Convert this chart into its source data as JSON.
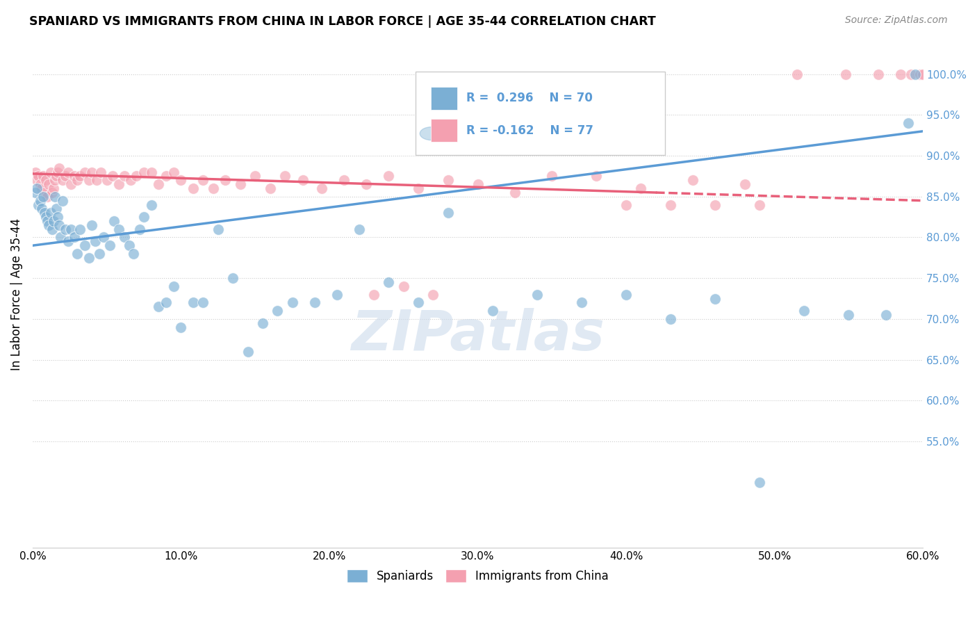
{
  "title": "SPANIARD VS IMMIGRANTS FROM CHINA IN LABOR FORCE | AGE 35-44 CORRELATION CHART",
  "source": "Source: ZipAtlas.com",
  "ylabel": "In Labor Force | Age 35-44",
  "xmin": 0.0,
  "xmax": 0.6,
  "ymin": 0.42,
  "ymax": 1.04,
  "yticks": [
    0.55,
    0.6,
    0.65,
    0.7,
    0.75,
    0.8,
    0.85,
    0.9,
    0.95,
    1.0
  ],
  "ytick_labels": [
    "55.0%",
    "60.0%",
    "65.0%",
    "70.0%",
    "75.0%",
    "80.0%",
    "85.0%",
    "90.0%",
    "95.0%",
    "100.0%"
  ],
  "xticks": [
    0.0,
    0.1,
    0.2,
    0.3,
    0.4,
    0.5,
    0.6
  ],
  "xtick_labels": [
    "0.0%",
    "10.0%",
    "20.0%",
    "30.0%",
    "40.0%",
    "50.0%",
    "60.0%"
  ],
  "color_spaniard": "#7BAFD4",
  "color_china": "#F4A0B0",
  "color_line_spaniard": "#5B9BD5",
  "color_line_china": "#E8607A",
  "color_axis_right": "#5B9BD5",
  "watermark": "ZIPatlas",
  "spaniard_x": [
    0.002,
    0.003,
    0.004,
    0.005,
    0.006,
    0.007,
    0.008,
    0.009,
    0.01,
    0.011,
    0.012,
    0.013,
    0.014,
    0.015,
    0.016,
    0.017,
    0.018,
    0.019,
    0.02,
    0.022,
    0.024,
    0.026,
    0.028,
    0.03,
    0.032,
    0.035,
    0.038,
    0.04,
    0.042,
    0.045,
    0.048,
    0.052,
    0.055,
    0.058,
    0.062,
    0.065,
    0.068,
    0.072,
    0.075,
    0.08,
    0.085,
    0.09,
    0.095,
    0.1,
    0.108,
    0.115,
    0.125,
    0.135,
    0.145,
    0.155,
    0.165,
    0.175,
    0.19,
    0.205,
    0.22,
    0.24,
    0.26,
    0.28,
    0.31,
    0.34,
    0.37,
    0.4,
    0.43,
    0.46,
    0.49,
    0.52,
    0.55,
    0.575,
    0.59,
    0.595
  ],
  "spaniard_y": [
    0.855,
    0.86,
    0.84,
    0.845,
    0.835,
    0.85,
    0.83,
    0.825,
    0.82,
    0.815,
    0.83,
    0.81,
    0.82,
    0.85,
    0.835,
    0.825,
    0.815,
    0.8,
    0.845,
    0.81,
    0.795,
    0.81,
    0.8,
    0.78,
    0.81,
    0.79,
    0.775,
    0.815,
    0.795,
    0.78,
    0.8,
    0.79,
    0.82,
    0.81,
    0.8,
    0.79,
    0.78,
    0.81,
    0.825,
    0.84,
    0.715,
    0.72,
    0.74,
    0.69,
    0.72,
    0.72,
    0.81,
    0.75,
    0.66,
    0.695,
    0.71,
    0.72,
    0.72,
    0.73,
    0.81,
    0.745,
    0.72,
    0.83,
    0.71,
    0.73,
    0.72,
    0.73,
    0.7,
    0.725,
    0.5,
    0.71,
    0.705,
    0.705,
    0.94,
    1.0
  ],
  "china_x": [
    0.002,
    0.003,
    0.004,
    0.005,
    0.006,
    0.007,
    0.008,
    0.009,
    0.01,
    0.011,
    0.012,
    0.013,
    0.014,
    0.015,
    0.016,
    0.017,
    0.018,
    0.02,
    0.022,
    0.024,
    0.026,
    0.028,
    0.03,
    0.032,
    0.035,
    0.038,
    0.04,
    0.043,
    0.046,
    0.05,
    0.054,
    0.058,
    0.062,
    0.066,
    0.07,
    0.075,
    0.08,
    0.085,
    0.09,
    0.095,
    0.1,
    0.108,
    0.115,
    0.122,
    0.13,
    0.14,
    0.15,
    0.16,
    0.17,
    0.182,
    0.195,
    0.21,
    0.225,
    0.24,
    0.26,
    0.28,
    0.3,
    0.325,
    0.35,
    0.38,
    0.41,
    0.445,
    0.48,
    0.515,
    0.548,
    0.57,
    0.585,
    0.592,
    0.598,
    0.6,
    0.23,
    0.25,
    0.27,
    0.4,
    0.43,
    0.46,
    0.49
  ],
  "china_y": [
    0.88,
    0.87,
    0.875,
    0.865,
    0.86,
    0.875,
    0.855,
    0.87,
    0.85,
    0.865,
    0.88,
    0.855,
    0.86,
    0.87,
    0.875,
    0.88,
    0.885,
    0.87,
    0.875,
    0.88,
    0.865,
    0.875,
    0.87,
    0.875,
    0.88,
    0.87,
    0.88,
    0.87,
    0.88,
    0.87,
    0.875,
    0.865,
    0.875,
    0.87,
    0.875,
    0.88,
    0.88,
    0.865,
    0.875,
    0.88,
    0.87,
    0.86,
    0.87,
    0.86,
    0.87,
    0.865,
    0.875,
    0.86,
    0.875,
    0.87,
    0.86,
    0.87,
    0.865,
    0.875,
    0.86,
    0.87,
    0.865,
    0.855,
    0.875,
    0.875,
    0.86,
    0.87,
    0.865,
    1.0,
    1.0,
    1.0,
    1.0,
    1.0,
    1.0,
    1.0,
    0.73,
    0.74,
    0.73,
    0.84,
    0.84,
    0.84,
    0.84
  ],
  "line_spaniard_x0": 0.0,
  "line_spaniard_y0": 0.79,
  "line_spaniard_x1": 0.6,
  "line_spaniard_y1": 0.93,
  "line_china_x0": 0.0,
  "line_china_x1": 0.6,
  "line_china_y0": 0.878,
  "line_china_y1": 0.845,
  "line_china_solid_end": 0.42
}
